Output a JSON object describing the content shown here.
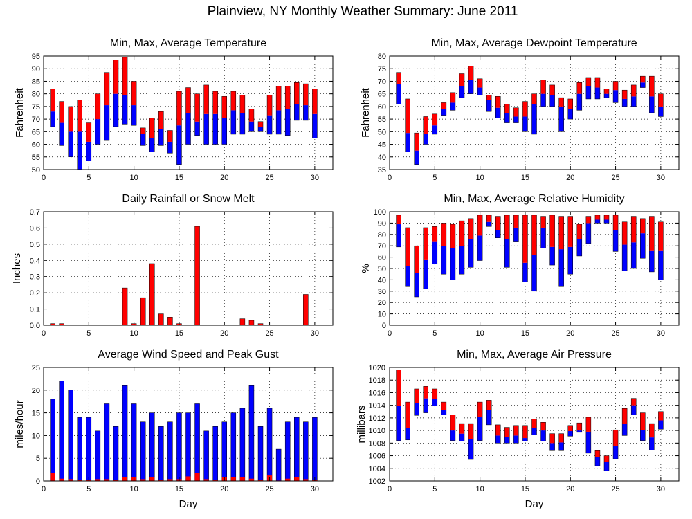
{
  "figure_title": "Plainview, NY Monthly Weather Summary: June 2011",
  "colors": {
    "max_part": "#ff0000",
    "min_part": "#0000ff",
    "grid": "#000000"
  },
  "chart_data": [
    {
      "id": "temperature",
      "type": "bar",
      "title": "Min, Max, Average Temperature",
      "ylabel": "Fahrenheit",
      "xlabel": "",
      "ylim": [
        50,
        95
      ],
      "yticks": [
        50,
        55,
        60,
        65,
        70,
        75,
        80,
        85,
        90,
        95
      ],
      "ytick_labels": [
        "50",
        "55",
        "60",
        "65",
        "70",
        "75",
        "80",
        "85",
        "90",
        "95"
      ],
      "xlim": [
        0,
        32
      ],
      "xticks": [
        0,
        5,
        10,
        15,
        20,
        25,
        30
      ],
      "ytick_side": "left",
      "grid": true,
      "x": [
        1,
        2,
        3,
        4,
        5,
        6,
        7,
        8,
        9,
        10,
        11,
        12,
        13,
        14,
        15,
        16,
        17,
        18,
        19,
        20,
        21,
        22,
        23,
        24,
        25,
        26,
        27,
        28,
        29,
        30
      ],
      "series": [
        {
          "name": "Min",
          "values": [
            67,
            59.5,
            55,
            50,
            53.5,
            60,
            61.5,
            67,
            68,
            67.5,
            59.5,
            57,
            59.5,
            56.5,
            52,
            60,
            63.5,
            60,
            60,
            60,
            64,
            64,
            65,
            65,
            64,
            64,
            63.5,
            69.5,
            69.5,
            62.5
          ]
        },
        {
          "name": "Average",
          "values": [
            73,
            68.5,
            65,
            65,
            61,
            70,
            75.5,
            80,
            79.5,
            75.5,
            64,
            62.5,
            66,
            61,
            67.5,
            72.5,
            69,
            72,
            72,
            70.5,
            73.5,
            72.5,
            69,
            67,
            71.5,
            73.5,
            74,
            76,
            75.5,
            72
          ]
        },
        {
          "name": "Max",
          "values": [
            82,
            77,
            75,
            77.5,
            68.5,
            80,
            88.5,
            93.5,
            94.5,
            85,
            66.5,
            70.5,
            73,
            65.5,
            81,
            82.5,
            80,
            83.5,
            81,
            79,
            81,
            79.5,
            74,
            69,
            79.5,
            83,
            83,
            84.5,
            84,
            82
          ]
        }
      ]
    },
    {
      "id": "dewpoint",
      "type": "bar",
      "title": "Min, Max, Average Dewpoint Temperature",
      "ylabel": "Fahrenheit",
      "xlabel": "",
      "ylim": [
        35,
        80
      ],
      "yticks": [
        35,
        40,
        45,
        50,
        55,
        60,
        65,
        70,
        75,
        80
      ],
      "ytick_labels": [
        "35",
        "40",
        "45",
        "50",
        "55",
        "60",
        "65",
        "70",
        "75",
        "80"
      ],
      "xlim": [
        0,
        32
      ],
      "xticks": [
        0,
        5,
        10,
        15,
        20,
        25,
        30
      ],
      "ytick_side": "left",
      "grid": true,
      "x": [
        1,
        2,
        3,
        4,
        5,
        6,
        7,
        8,
        9,
        10,
        11,
        12,
        13,
        14,
        15,
        16,
        17,
        18,
        19,
        20,
        21,
        22,
        23,
        24,
        25,
        26,
        27,
        28,
        29,
        30
      ],
      "series": [
        {
          "name": "Min",
          "values": [
            61,
            42,
            37,
            45,
            49,
            56.5,
            58.5,
            63.5,
            65,
            64.5,
            58,
            55.5,
            53.5,
            53.5,
            50,
            49,
            60,
            60,
            50,
            55,
            58.5,
            63,
            63,
            63.5,
            61.5,
            60,
            60,
            67.5,
            57.5,
            56
          ]
        },
        {
          "name": "Average",
          "values": [
            69,
            49.5,
            42.5,
            49,
            52.5,
            59,
            61.5,
            68,
            70.5,
            67.5,
            62.5,
            59.5,
            57.5,
            56,
            56,
            61,
            65,
            64.5,
            60,
            59,
            65,
            68,
            67.5,
            65,
            66.5,
            63,
            64,
            69.5,
            64,
            60
          ]
        },
        {
          "name": "Max",
          "values": [
            73.5,
            63,
            49.5,
            56,
            57,
            61.5,
            65.5,
            73,
            76,
            71,
            64.5,
            64,
            61,
            59.5,
            62,
            65,
            70.5,
            68.5,
            63.5,
            63,
            69.5,
            71.5,
            71.5,
            67,
            70,
            66.5,
            68.5,
            72,
            72,
            65
          ]
        }
      ]
    },
    {
      "id": "rainfall",
      "type": "bar",
      "title": "Daily Rainfall or Snow Melt",
      "ylabel": "Inches",
      "xlabel": "",
      "ylim": [
        0,
        0.7
      ],
      "yticks": [
        0,
        0.1,
        0.2,
        0.3,
        0.4,
        0.5,
        0.6,
        0.7
      ],
      "ytick_labels": [
        "0.0",
        "0.1",
        "0.2",
        "0.3",
        "0.4",
        "0.5",
        "0.6",
        "0.7"
      ],
      "xlim": [
        0,
        32
      ],
      "xticks": [
        0,
        5,
        10,
        15,
        20,
        25,
        30
      ],
      "ytick_side": "left",
      "grid": true,
      "x": [
        1,
        2,
        3,
        4,
        5,
        6,
        7,
        8,
        9,
        10,
        11,
        12,
        13,
        14,
        15,
        16,
        17,
        18,
        19,
        20,
        21,
        22,
        23,
        24,
        25,
        26,
        27,
        28,
        29,
        30
      ],
      "series": [
        {
          "name": "Rainfall",
          "values": [
            0.01,
            0.01,
            0,
            0,
            0,
            0,
            0,
            0,
            0.23,
            0.01,
            0.17,
            0.38,
            0.07,
            0.05,
            0.01,
            0,
            0.61,
            0,
            0,
            0,
            0,
            0.04,
            0.03,
            0.01,
            0,
            0,
            0,
            0,
            0.19,
            0
          ]
        }
      ]
    },
    {
      "id": "humidity",
      "type": "bar",
      "title": "Min, Max, Average Relative Humidity",
      "ylabel": "%",
      "xlabel": "",
      "ylim": [
        0,
        100
      ],
      "yticks": [
        0,
        10,
        20,
        30,
        40,
        50,
        60,
        70,
        80,
        90,
        100
      ],
      "ytick_labels": [
        "0",
        "10",
        "20",
        "30",
        "40",
        "50",
        "60",
        "70",
        "80",
        "90",
        "100"
      ],
      "xlim": [
        0,
        32
      ],
      "xticks": [
        0,
        5,
        10,
        15,
        20,
        25,
        30
      ],
      "ytick_side": "left",
      "grid": true,
      "x": [
        1,
        2,
        3,
        4,
        5,
        6,
        7,
        8,
        9,
        10,
        11,
        12,
        13,
        14,
        15,
        16,
        17,
        18,
        19,
        20,
        21,
        22,
        23,
        24,
        25,
        26,
        27,
        28,
        29,
        30
      ],
      "series": [
        {
          "name": "Min",
          "values": [
            69,
            34,
            25,
            32,
            54,
            45,
            40,
            45,
            51,
            57,
            87,
            77,
            51,
            74,
            38,
            30,
            68,
            53,
            34,
            45,
            61,
            72,
            90,
            90,
            65,
            48,
            50,
            59,
            47,
            40
          ]
        },
        {
          "name": "Average",
          "values": [
            89,
            52,
            46,
            58,
            74,
            70,
            68,
            70,
            76,
            79,
            91,
            84,
            76,
            86,
            55,
            62,
            86,
            69,
            67,
            69,
            76,
            90,
            93,
            93,
            84,
            71,
            73,
            81,
            66,
            66
          ]
        },
        {
          "name": "Max",
          "values": [
            97,
            86,
            70,
            86,
            87,
            90,
            89,
            92,
            94,
            97,
            97,
            96,
            97,
            97,
            97,
            97,
            96,
            97,
            96,
            96,
            89,
            96,
            97,
            97,
            97,
            91,
            96,
            94,
            96,
            91
          ]
        }
      ]
    },
    {
      "id": "wind",
      "type": "bar",
      "title": "Average Wind Speed and Peak Gust",
      "ylabel": "miles/hour",
      "xlabel": "Day",
      "ylim": [
        0,
        25
      ],
      "yticks": [
        0,
        5,
        10,
        15,
        20,
        25
      ],
      "ytick_labels": [
        "0",
        "5",
        "10",
        "15",
        "20",
        "25"
      ],
      "xlim": [
        0,
        32
      ],
      "xticks": [
        0,
        5,
        10,
        15,
        20,
        25,
        30
      ],
      "ytick_side": "left",
      "grid": true,
      "x": [
        1,
        2,
        3,
        4,
        5,
        6,
        7,
        8,
        9,
        10,
        11,
        12,
        13,
        14,
        15,
        16,
        17,
        18,
        19,
        20,
        21,
        22,
        23,
        24,
        25,
        26,
        27,
        28,
        29,
        30
      ],
      "series": [
        {
          "name": "Average Wind Speed",
          "values": [
            1.7,
            0.5,
            0.4,
            0.2,
            0.3,
            0.4,
            0.4,
            0.3,
            0.8,
            0.8,
            0.4,
            0.8,
            0.3,
            0.4,
            0.4,
            1.0,
            1.8,
            0.4,
            0.3,
            0.8,
            0.8,
            0.8,
            0.5,
            0.3,
            1.2,
            0.1,
            0.5,
            0.9,
            0.4,
            0.3
          ]
        },
        {
          "name": "Peak Gust",
          "values": [
            18,
            22,
            20,
            14,
            14,
            11,
            17,
            12,
            21,
            17,
            13,
            15,
            12,
            13,
            15,
            15,
            17,
            11,
            12,
            13,
            15,
            16,
            21,
            12,
            16,
            7,
            13,
            14,
            13,
            14
          ]
        }
      ]
    },
    {
      "id": "pressure",
      "type": "bar",
      "title": "Min, Max, Average Air Pressure",
      "ylabel": "millibars",
      "xlabel": "Day",
      "ylim": [
        1002,
        1020
      ],
      "yticks": [
        1002,
        1004,
        1006,
        1008,
        1010,
        1012,
        1014,
        1016,
        1018,
        1020
      ],
      "ytick_labels": [
        "1002",
        "1004",
        "1006",
        "1008",
        "1010",
        "1012",
        "1014",
        "1016",
        "1018",
        "1020"
      ],
      "xlim": [
        0,
        32
      ],
      "xticks": [
        0,
        5,
        10,
        15,
        20,
        25,
        30
      ],
      "ytick_side": "right",
      "grid": true,
      "x": [
        1,
        2,
        3,
        4,
        5,
        6,
        7,
        8,
        9,
        10,
        11,
        12,
        13,
        14,
        15,
        16,
        17,
        18,
        19,
        20,
        21,
        22,
        23,
        24,
        25,
        26,
        27,
        28,
        29,
        30
      ],
      "series": [
        {
          "name": "Min",
          "values": [
            1008.4,
            1008.5,
            1012.4,
            1012.8,
            1013.9,
            1012.5,
            1008.4,
            1008.3,
            1005.4,
            1008.4,
            1010.9,
            1008.0,
            1008.0,
            1008.0,
            1008.3,
            1009.3,
            1008.3,
            1006.8,
            1006.8,
            1009.1,
            1009.7,
            1006.4,
            1004.4,
            1003.6,
            1005.5,
            1009.2,
            1012.5,
            1008.4,
            1006.9,
            1010.2
          ]
        },
        {
          "name": "Average",
          "values": [
            1013.9,
            1010.4,
            1014.4,
            1015.1,
            1015.0,
            1013.3,
            1010.0,
            1009.5,
            1008.6,
            1012.1,
            1013.2,
            1009.2,
            1009.0,
            1009.2,
            1008.8,
            1010.4,
            1010.0,
            1008.0,
            1008.1,
            1009.9,
            1010.0,
            1009.8,
            1005.8,
            1005.0,
            1007.6,
            1011.1,
            1014.0,
            1010.1,
            1008.9,
            1011.6
          ]
        },
        {
          "name": "Max",
          "values": [
            1019.6,
            1014.5,
            1016.6,
            1017.0,
            1016.6,
            1014.5,
            1012.5,
            1011.1,
            1011.1,
            1014.5,
            1014.8,
            1010.9,
            1010.5,
            1010.8,
            1010.8,
            1011.8,
            1011.3,
            1009.5,
            1009.5,
            1010.8,
            1011.2,
            1012.1,
            1006.8,
            1006.0,
            1010.1,
            1013.5,
            1015.1,
            1012.8,
            1011.1,
            1013.0
          ]
        }
      ]
    }
  ]
}
